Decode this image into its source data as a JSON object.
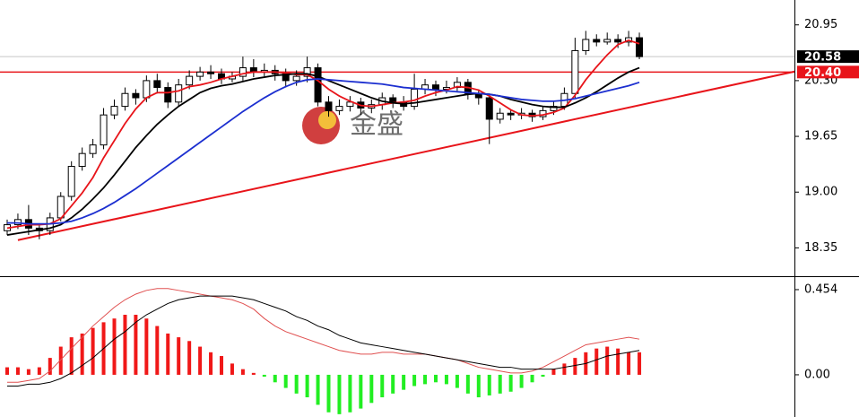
{
  "chart_data": {
    "type": "candlestick",
    "watermark": "金盛",
    "ylim": [
      18.03,
      21.24
    ],
    "yticks": [
      {
        "value": 18.35,
        "label": "18.35"
      },
      {
        "value": 19,
        "label": "19.00"
      },
      19.65,
      {
        "value": 20.3,
        "label": "20.30"
      },
      20.95
    ],
    "open": [
      18.55,
      18.62,
      18.68,
      18.58,
      18.55,
      18.7,
      18.95,
      19.3,
      19.45,
      19.55,
      19.9,
      20.0,
      20.15,
      20.1,
      20.3,
      20.22,
      20.05,
      20.25,
      20.35,
      20.4,
      20.38,
      20.32,
      20.35,
      20.45,
      20.4,
      20.42,
      20.38,
      20.3,
      20.35,
      20.45,
      20.05,
      19.95,
      20.0,
      20.05,
      19.98,
      20.02,
      20.1,
      20.05,
      20.0,
      20.2,
      20.25,
      20.2,
      20.22,
      20.28,
      20.15,
      20.1,
      19.85,
      19.92,
      19.9,
      19.92,
      19.88,
      19.95,
      20.0,
      20.15,
      20.65,
      20.78,
      20.75,
      20.78,
      20.75,
      20.8
    ],
    "high": [
      18.68,
      18.75,
      18.85,
      18.62,
      18.76,
      19.0,
      19.36,
      19.52,
      19.62,
      19.98,
      20.08,
      20.22,
      20.2,
      20.36,
      20.38,
      20.28,
      20.32,
      20.42,
      20.46,
      20.48,
      20.44,
      20.4,
      20.58,
      20.55,
      20.5,
      20.48,
      20.44,
      20.42,
      20.58,
      20.5,
      20.12,
      20.08,
      20.12,
      20.1,
      20.08,
      20.16,
      20.14,
      20.12,
      20.38,
      20.32,
      20.3,
      20.3,
      20.34,
      20.32,
      20.2,
      20.12,
      19.98,
      19.96,
      19.98,
      19.96,
      20.0,
      20.06,
      20.22,
      20.8,
      20.88,
      20.84,
      20.86,
      20.84,
      20.88,
      20.86
    ],
    "low": [
      18.5,
      18.57,
      18.5,
      18.45,
      18.5,
      18.66,
      18.9,
      19.25,
      19.4,
      19.5,
      19.85,
      19.95,
      20.02,
      20.05,
      20.15,
      19.98,
      20.0,
      20.2,
      20.3,
      20.32,
      20.26,
      20.28,
      20.3,
      20.34,
      20.35,
      20.3,
      20.22,
      20.24,
      20.28,
      20.0,
      19.88,
      19.9,
      19.94,
      19.9,
      19.92,
      19.96,
      19.98,
      19.95,
      19.96,
      20.14,
      20.12,
      20.15,
      20.18,
      20.08,
      20.02,
      19.56,
      19.8,
      19.84,
      19.85,
      19.82,
      19.84,
      19.9,
      19.96,
      20.1,
      20.6,
      20.7,
      20.72,
      20.68,
      20.7,
      20.55
    ],
    "close": [
      18.62,
      18.68,
      18.58,
      18.55,
      18.7,
      18.95,
      19.3,
      19.45,
      19.55,
      19.9,
      20.0,
      20.15,
      20.1,
      20.3,
      20.22,
      20.05,
      20.25,
      20.35,
      20.4,
      20.38,
      20.32,
      20.35,
      20.45,
      20.4,
      20.42,
      20.38,
      20.3,
      20.35,
      20.45,
      20.05,
      19.95,
      20.0,
      20.05,
      19.98,
      20.02,
      20.1,
      20.05,
      20.0,
      20.2,
      20.25,
      20.2,
      20.22,
      20.28,
      20.15,
      20.1,
      19.85,
      19.92,
      19.9,
      19.92,
      19.88,
      19.95,
      20.0,
      20.15,
      20.65,
      20.78,
      20.75,
      20.78,
      20.75,
      20.8,
      20.58
    ],
    "series": [
      {
        "color": "#e8141a",
        "values": [
          18.58,
          18.6,
          18.62,
          18.62,
          18.63,
          18.69,
          18.84,
          18.99,
          19.17,
          19.4,
          19.6,
          19.8,
          19.97,
          20.1,
          20.16,
          20.16,
          20.18,
          20.23,
          20.25,
          20.28,
          20.32,
          20.35,
          20.38,
          20.4,
          20.4,
          20.4,
          20.39,
          20.37,
          20.37,
          20.3,
          20.2,
          20.12,
          20.06,
          20.01,
          20.0,
          20.02,
          20.04,
          20.05,
          20.07,
          20.12,
          20.16,
          20.19,
          20.23,
          20.22,
          20.19,
          20.12,
          20.04,
          19.96,
          19.9,
          19.89,
          19.9,
          19.93,
          19.98,
          20.13,
          20.31,
          20.46,
          20.6,
          20.72,
          20.77,
          20.73
        ]
      },
      {
        "color": "#000000",
        "values": [
          18.5,
          18.52,
          18.54,
          18.56,
          18.58,
          18.62,
          18.7,
          18.8,
          18.92,
          19.05,
          19.2,
          19.36,
          19.52,
          19.66,
          19.79,
          19.9,
          20.0,
          20.08,
          20.16,
          20.21,
          20.24,
          20.26,
          20.29,
          20.32,
          20.34,
          20.36,
          20.37,
          20.38,
          20.38,
          20.35,
          20.3,
          20.25,
          20.2,
          20.15,
          20.1,
          20.06,
          20.04,
          20.03,
          20.04,
          20.06,
          20.08,
          20.1,
          20.12,
          20.14,
          20.15,
          20.14,
          20.12,
          20.08,
          20.05,
          20.02,
          20.0,
          19.99,
          19.99,
          20.04,
          20.1,
          20.17,
          20.25,
          20.33,
          20.4,
          20.45
        ]
      },
      {
        "color": "#1c2fd0",
        "values": [
          18.64,
          18.64,
          18.63,
          18.63,
          18.63,
          18.64,
          18.66,
          18.7,
          18.75,
          18.81,
          18.88,
          18.96,
          19.04,
          19.13,
          19.22,
          19.31,
          19.4,
          19.49,
          19.58,
          19.67,
          19.76,
          19.85,
          19.94,
          20.02,
          20.1,
          20.17,
          20.23,
          20.28,
          20.31,
          20.32,
          20.31,
          20.3,
          20.29,
          20.28,
          20.27,
          20.26,
          20.24,
          20.22,
          20.21,
          20.2,
          20.19,
          20.18,
          20.17,
          20.16,
          20.15,
          20.14,
          20.12,
          20.1,
          20.08,
          20.07,
          20.06,
          20.06,
          20.07,
          20.09,
          20.12,
          20.15,
          20.18,
          20.21,
          20.24,
          20.28
        ]
      }
    ],
    "trendline": {
      "x": [
        1,
        74
      ],
      "values": [
        18.44,
        20.42
      ],
      "color": "#e8141a"
    },
    "price_lines": [
      {
        "value": 20.58,
        "label": "20.58",
        "color": "#000000",
        "line_color": "#c8c8c8"
      },
      {
        "value": 20.4,
        "label": "20.40",
        "color": "#e8141a",
        "line_color": "#e8141a"
      }
    ],
    "macd": {
      "ylim": [
        -0.225,
        0.516
      ],
      "yticks": [
        {
          "value": 0,
          "label": "0.00"
        },
        0.454
      ],
      "positive_color": "#f01818",
      "negative_color": "#22ee22",
      "histogram": [
        0.04,
        0.04,
        0.03,
        0.04,
        0.09,
        0.15,
        0.2,
        0.22,
        0.25,
        0.28,
        0.3,
        0.32,
        0.32,
        0.3,
        0.26,
        0.22,
        0.2,
        0.18,
        0.15,
        0.12,
        0.1,
        0.06,
        0.03,
        0.01,
        -0.01,
        -0.04,
        -0.07,
        -0.1,
        -0.12,
        -0.16,
        -0.2,
        -0.21,
        -0.2,
        -0.18,
        -0.15,
        -0.12,
        -0.1,
        -0.08,
        -0.06,
        -0.05,
        -0.04,
        -0.05,
        -0.07,
        -0.1,
        -0.12,
        -0.11,
        -0.1,
        -0.09,
        -0.07,
        -0.04,
        -0.01,
        0.03,
        0.06,
        0.09,
        0.12,
        0.14,
        0.15,
        0.14,
        0.12,
        0.12
      ],
      "series": [
        {
          "color": "#e05050",
          "values": [
            -0.04,
            -0.04,
            -0.03,
            -0.02,
            0.02,
            0.08,
            0.14,
            0.2,
            0.26,
            0.31,
            0.36,
            0.4,
            0.43,
            0.45,
            0.46,
            0.46,
            0.45,
            0.44,
            0.43,
            0.42,
            0.41,
            0.4,
            0.38,
            0.35,
            0.3,
            0.26,
            0.23,
            0.21,
            0.19,
            0.17,
            0.15,
            0.13,
            0.12,
            0.11,
            0.11,
            0.12,
            0.12,
            0.11,
            0.11,
            0.11,
            0.1,
            0.09,
            0.08,
            0.06,
            0.04,
            0.03,
            0.02,
            0.01,
            0.01,
            0.02,
            0.04,
            0.07,
            0.1,
            0.13,
            0.16,
            0.17,
            0.18,
            0.19,
            0.2,
            0.19
          ]
        },
        {
          "color": "#000000",
          "values": [
            -0.06,
            -0.06,
            -0.05,
            -0.05,
            -0.04,
            -0.02,
            0.01,
            0.05,
            0.09,
            0.14,
            0.19,
            0.23,
            0.28,
            0.32,
            0.35,
            0.38,
            0.4,
            0.41,
            0.42,
            0.42,
            0.42,
            0.42,
            0.41,
            0.4,
            0.38,
            0.36,
            0.34,
            0.31,
            0.29,
            0.26,
            0.24,
            0.21,
            0.19,
            0.17,
            0.16,
            0.15,
            0.14,
            0.13,
            0.12,
            0.11,
            0.1,
            0.09,
            0.08,
            0.07,
            0.06,
            0.05,
            0.04,
            0.04,
            0.03,
            0.03,
            0.03,
            0.03,
            0.04,
            0.05,
            0.06,
            0.08,
            0.1,
            0.11,
            0.12,
            0.13
          ]
        }
      ]
    }
  }
}
